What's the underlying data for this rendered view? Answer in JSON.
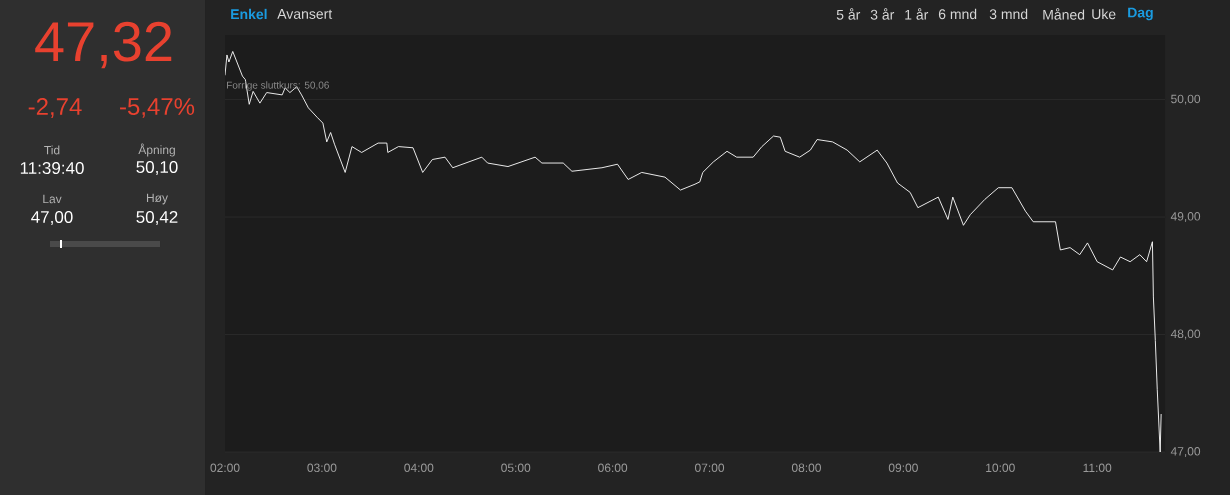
{
  "chart_data": [
    {
      "type": "other",
      "annotations": [
        "47,32",
        "-2,74",
        "-5,47%",
        "Tid",
        "11:39:40",
        "Åpning",
        "50,10",
        "Lav",
        "47,00",
        "Høy",
        "50,42"
      ]
    },
    {
      "type": "line",
      "grid": "y",
      "xlim": [
        2,
        11.7
      ],
      "ylim": [
        47,
        50.55
      ],
      "xticks": [
        {
          "value": 2,
          "label": "02:00"
        },
        {
          "value": 3,
          "label": "03:00"
        },
        {
          "value": 4,
          "label": "04:00"
        },
        {
          "value": 5,
          "label": "05:00"
        },
        {
          "value": 6,
          "label": "06:00"
        },
        {
          "value": 7,
          "label": "07:00"
        },
        {
          "value": 8,
          "label": "08:00"
        },
        {
          "value": 9,
          "label": "09:00"
        },
        {
          "value": 10,
          "label": "10:00"
        },
        {
          "value": 11,
          "label": "11:00"
        }
      ],
      "yticks": [
        {
          "value": 47,
          "label": "47,00"
        },
        {
          "value": 48,
          "label": "48,00"
        },
        {
          "value": 49,
          "label": "49,00"
        },
        {
          "value": 50,
          "label": "50,00"
        }
      ],
      "annotations": [
        "Enkel",
        "Avansert",
        "5 år",
        "3 år",
        "1 år",
        "6 mnd",
        "3 mnd",
        "Måned",
        "Uke",
        "Dag",
        "Forrige sluttkurs: 50,06"
      ],
      "series": [
        {
          "color": "#ffffff",
          "x": [
            2.0,
            2.02,
            2.04,
            2.08,
            2.18,
            2.21,
            2.25,
            2.29,
            2.36,
            2.43,
            2.59,
            2.62,
            2.67,
            2.74,
            2.79,
            2.86,
            2.95,
            3.01,
            3.05,
            3.09,
            3.13,
            3.24,
            3.31,
            3.41,
            3.58,
            3.67,
            3.68,
            3.79,
            3.94,
            4.04,
            4.14,
            4.27,
            4.35,
            4.65,
            4.71,
            4.92,
            5.2,
            5.27,
            5.49,
            5.58,
            5.89,
            6.05,
            6.16,
            6.3,
            6.54,
            6.7,
            6.85,
            6.9,
            6.93,
            7.04,
            7.18,
            7.28,
            7.45,
            7.54,
            7.66,
            7.73,
            7.78,
            7.93,
            8.04,
            8.11,
            8.27,
            8.42,
            8.55,
            8.73,
            8.83,
            8.94,
            9.07,
            9.15,
            9.36,
            9.46,
            9.51,
            9.62,
            9.69,
            9.84,
            9.98,
            10.12,
            10.26,
            10.34,
            10.57,
            10.62,
            10.72,
            10.82,
            10.9,
            11.0,
            11.16,
            11.24,
            11.34,
            11.44,
            11.51,
            11.57,
            11.58,
            11.6,
            11.62,
            11.65,
            11.66
          ],
          "values": [
            50.21,
            50.38,
            50.32,
            50.41,
            50.2,
            50.17,
            49.96,
            50.07,
            49.97,
            50.06,
            50.04,
            50.1,
            50.06,
            50.11,
            50.04,
            49.93,
            49.85,
            49.8,
            49.64,
            49.72,
            49.62,
            49.38,
            49.6,
            49.55,
            49.63,
            49.63,
            49.55,
            49.6,
            49.59,
            49.38,
            49.49,
            49.51,
            49.42,
            49.51,
            49.46,
            49.43,
            49.51,
            49.46,
            49.46,
            49.39,
            49.42,
            49.45,
            49.32,
            49.38,
            49.34,
            49.23,
            49.28,
            49.3,
            49.38,
            49.47,
            49.56,
            49.51,
            49.51,
            49.6,
            49.69,
            49.68,
            49.56,
            49.51,
            49.57,
            49.66,
            49.64,
            49.57,
            49.47,
            49.57,
            49.46,
            49.29,
            49.21,
            49.08,
            49.17,
            48.98,
            49.17,
            48.93,
            49.02,
            49.15,
            49.25,
            49.25,
            49.05,
            48.96,
            48.96,
            48.72,
            48.74,
            48.68,
            48.78,
            48.62,
            48.55,
            48.66,
            48.62,
            48.68,
            48.62,
            48.79,
            48.32,
            47.95,
            47.53,
            47.0,
            47.32
          ]
        }
      ]
    }
  ]
}
